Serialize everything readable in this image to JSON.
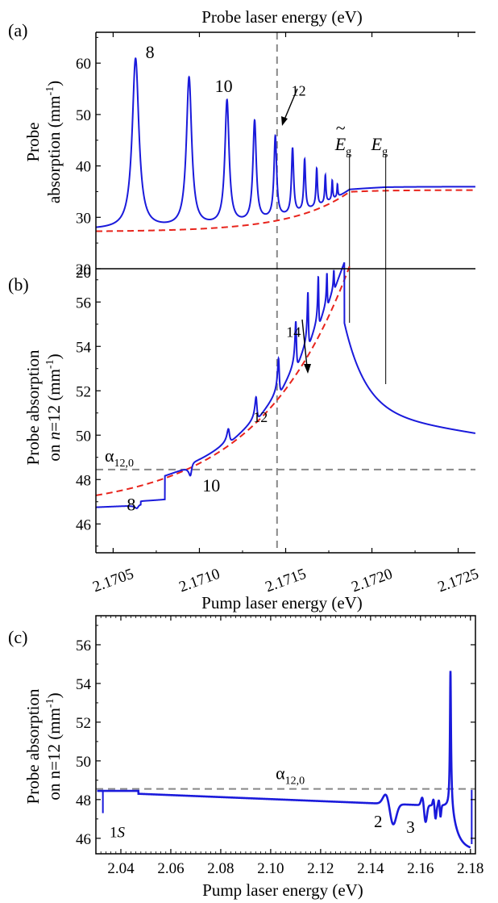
{
  "colors": {
    "data": "#1a1adb",
    "fit": "#e8241c",
    "dashed": "#888888",
    "marker": "#000000"
  },
  "chart_data": [
    {
      "panel": "(a)",
      "type": "line",
      "top_axis_label": "Probe laser energy (eV)",
      "ylabel": [
        "Probe",
        "absorption (mm",
        "-1",
        ")"
      ],
      "xlim": [
        2.1704,
        2.1726
      ],
      "ylim": [
        20,
        66
      ],
      "yticks": [
        20,
        30,
        40,
        50,
        60
      ],
      "baseline": 35.3,
      "peaks": [
        {
          "x": 2.17063,
          "y": 60.8
        },
        {
          "x": 2.17094,
          "y": 57.0
        },
        {
          "x": 2.17116,
          "y": 52.5
        },
        {
          "x": 2.17132,
          "y": 48.5
        },
        {
          "x": 2.17144,
          "y": 45.5
        },
        {
          "x": 2.17154,
          "y": 43.2
        },
        {
          "x": 2.17161,
          "y": 41.0
        },
        {
          "x": 2.17168,
          "y": 39.3
        },
        {
          "x": 2.17173,
          "y": 38.0
        },
        {
          "x": 2.17177,
          "y": 37.0
        },
        {
          "x": 2.1718,
          "y": 36.3
        }
      ],
      "peak_labels": [
        {
          "text": "8",
          "x": 2.17066,
          "y": 61
        },
        {
          "text": "10",
          "x": 2.17115,
          "y": 55
        },
        {
          "text": "12",
          "x": 2.17151,
          "y": 54
        }
      ],
      "gap_markers": [
        {
          "sym": "E",
          "sub": "g",
          "tilde": true,
          "x": 2.17187
        },
        {
          "sym": "E",
          "sub": "g",
          "tilde": false,
          "x": 2.17208
        }
      ],
      "vline_x": 2.17145
    },
    {
      "panel": "(b)",
      "type": "line",
      "xlabel": "Pump laser energy (eV)",
      "ylabel": [
        "Probe absorption",
        "on ",
        "n",
        "=12 (mm",
        "-1",
        ")"
      ],
      "xlim": [
        2.1704,
        2.1726
      ],
      "ylim": [
        44.7,
        57.5
      ],
      "yticks": [
        46,
        48,
        50,
        52,
        54,
        56
      ],
      "xticks": [
        "2.1705",
        "2.1710",
        "2.1715",
        "2.1720",
        "2.1725"
      ],
      "hline": {
        "y": 48.45,
        "label": "α",
        "sub": "12,0"
      },
      "peak_labels": [
        {
          "text": "8",
          "x": 2.17064,
          "y": 46.9
        },
        {
          "text": "10",
          "x": 2.17113,
          "y": 47.9
        },
        {
          "text": "12",
          "x": 2.17141,
          "y": 51.5
        },
        {
          "text": "14",
          "x": 2.17162,
          "y": 54.0
        }
      ],
      "vline_x": 2.17145
    },
    {
      "panel": "(c)",
      "type": "line",
      "xlabel": "Pump laser energy (eV)",
      "ylabel": [
        "Probe absorption",
        "on n=12 (mm",
        "-1",
        ")"
      ],
      "xlim": [
        2.03,
        2.182
      ],
      "ylim": [
        45.2,
        57.5
      ],
      "yticks": [
        46,
        48,
        50,
        52,
        54,
        56
      ],
      "xticks": [
        2.04,
        2.06,
        2.08,
        2.1,
        2.12,
        2.14,
        2.16,
        2.18
      ],
      "hline": {
        "y": 48.55,
        "label": "α",
        "sub": "12,0"
      },
      "peak_labels": [
        {
          "text": "1",
          "italic_suffix": "S",
          "x": 2.0355,
          "y": 46.3
        },
        {
          "text": "2",
          "x": 2.146,
          "y": 47.0
        },
        {
          "text": "3",
          "x": 2.159,
          "y": 46.7
        }
      ],
      "peak_max": {
        "x": 2.172,
        "y": 55.3
      }
    }
  ]
}
